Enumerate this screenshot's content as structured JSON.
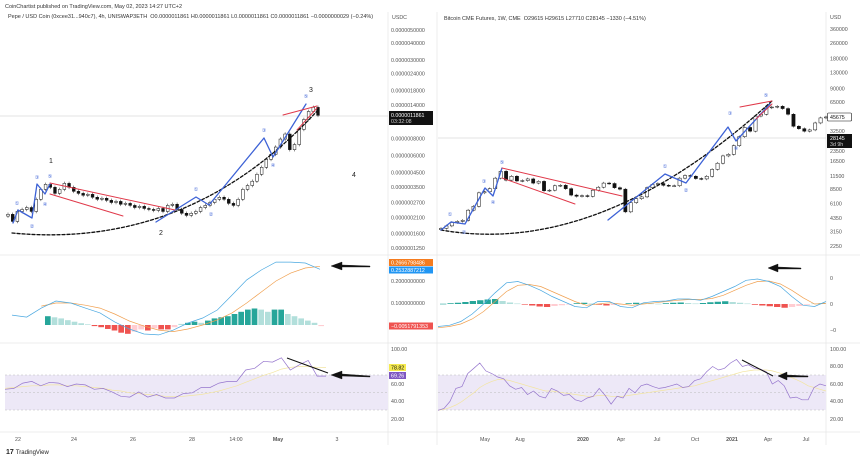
{
  "header": {
    "published": "CoinChartist published on TradingView.com, May 02, 2023 14:27 UTC+2"
  },
  "footer": {
    "brand": "TradingView",
    "logo_icon": "tradingview-logo-icon"
  },
  "colors": {
    "wave": "#3d62d6",
    "channel": "#e0394a",
    "macd": "#4aa8e0",
    "signal": "#f0a050",
    "hist_up": "#26a69a",
    "hist_up_light": "#b2dfdb",
    "hist_down": "#ef5350",
    "hist_down_light": "#ffcdd2",
    "rsi": "#9575cd",
    "rsi_ma": "#f3e5a0",
    "rsi_band": "#ede8f7"
  },
  "chart_data": [
    {
      "type": "candlestick",
      "title": "Pepe / USD Coin (0xcee31...940c7), 4h, UNISWAP3ETH",
      "ohlc_text": "O0.0000011861  H0.0000011861  L0.0000011861  C0.0000011861  −0.0000000029 (−0.24%)",
      "currency": "USDC",
      "y_scale": "log",
      "ylim": [
        1.25e-07,
        5e-06
      ],
      "y_ticks": [
        "0.0000050000",
        "0.0000040000",
        "0.0000030000",
        "0.0000024000",
        "0.0000018000",
        "0.0000014000",
        "0.0000008000",
        "0.0000006000",
        "0.0000004500",
        "0.0000003500",
        "0.0000002700",
        "0.0000002100",
        "0.0000001600",
        "0.0000001250"
      ],
      "x_ticks": [
        "22",
        "24",
        "26",
        "28",
        "14:00",
        "May",
        "3"
      ],
      "last_price": {
        "value": "0.0000011861",
        "countdown": "03:32:08"
      },
      "closes": [
        2.21e-07,
        1.96e-07,
        2.32e-07,
        2.4e-07,
        2.48e-07,
        2.32e-07,
        2.85e-07,
        3.37e-07,
        3.67e-07,
        3.49e-07,
        3.15e-07,
        3.37e-07,
        3.73e-07,
        3.49e-07,
        3.26e-07,
        3.15e-07,
        3.05e-07,
        3.1e-07,
        2.95e-07,
        2.85e-07,
        2.9e-07,
        2.8e-07,
        2.7e-07,
        2.75e-07,
        2.62e-07,
        2.66e-07,
        2.57e-07,
        2.48e-07,
        2.53e-07,
        2.44e-07,
        2.4e-07,
        2.36e-07,
        2.44e-07,
        2.32e-07,
        2.57e-07,
        2.62e-07,
        2.4e-07,
        2.25e-07,
        2.17e-07,
        2.25e-07,
        2.32e-07,
        2.48e-07,
        2.57e-07,
        2.7e-07,
        2.85e-07,
        2.95e-07,
        2.85e-07,
        2.66e-07,
        2.57e-07,
        2.85e-07,
        3.37e-07,
        3.6e-07,
        3.87e-07,
        4.35e-07,
        4.9e-07,
        5.6e-07,
        6.1e-07,
        6.9e-07,
        7.9e-07,
        8.6e-07,
        6.6e-07,
        7.2e-07,
        9.3e-07,
        1.1e-06,
        1.26e-06,
        1.35e-06,
        1.18e-06
      ],
      "wave_labels": {
        "major": [
          "1",
          "2",
          "3",
          "4"
        ],
        "minor": [
          "①",
          "②",
          "③",
          "④",
          "⑤",
          "①",
          "②",
          "③",
          "④",
          "⑤"
        ]
      },
      "macd": {
        "ticks": [
          "0.2000000000",
          "0.1000000000"
        ],
        "macd_value": "0.2532887212",
        "signal_value": "0.2666798486",
        "hist_value": "−0.0051791353",
        "macd": [
          0.045,
          0.036,
          0.077,
          0.109,
          0.1,
          0.077,
          0.055,
          0.014,
          -0.018,
          -0.041,
          -0.045,
          -0.023,
          0.009,
          0.032,
          0.068,
          0.136,
          0.205,
          0.25,
          0.286,
          0.286,
          0.282,
          0.253
        ],
        "signal": [
          null,
          null,
          0.086,
          0.1,
          0.1,
          0.09,
          0.077,
          0.05,
          0.018,
          -0.005,
          -0.023,
          -0.03,
          -0.018,
          0.0,
          0.023,
          0.055,
          0.1,
          0.15,
          0.2,
          0.236,
          0.259,
          0.267
        ],
        "hist": [
          0.04,
          0.035,
          0.03,
          0.022,
          0.015,
          0.008,
          0.003,
          -0.005,
          -0.01,
          -0.018,
          -0.025,
          -0.035,
          -0.04,
          -0.03,
          -0.02,
          -0.025,
          -0.015,
          -0.02,
          -0.02,
          -0.01,
          0.005,
          0.01,
          0.015,
          0.01,
          0.02,
          0.03,
          0.035,
          0.04,
          0.05,
          0.06,
          0.07,
          0.075,
          0.07,
          0.06,
          0.07,
          0.07,
          0.05,
          0.04,
          0.03,
          0.02,
          0.01,
          -0.005
        ]
      },
      "rsi": {
        "ticks": [
          "100.00",
          "60.00",
          "40.00",
          "20.00"
        ],
        "rsi_value": "69.26",
        "ma_value": "78.82",
        "rsi": [
          54,
          55,
          61,
          63,
          58,
          62,
          61,
          57,
          60,
          59,
          54,
          55,
          51,
          46,
          45,
          51,
          45,
          48,
          44,
          44,
          49,
          50,
          56,
          56,
          61,
          63,
          63,
          76,
          78,
          86,
          85,
          90,
          76,
          82,
          87,
          69,
          69
        ],
        "ma": [
          55,
          56,
          57,
          58,
          58,
          59,
          59,
          58,
          58,
          57,
          56,
          55,
          53,
          52,
          50,
          49,
          48,
          47,
          46,
          46,
          46,
          47,
          48,
          50,
          52,
          55,
          58,
          62,
          66,
          70,
          73,
          77,
          79,
          80,
          80,
          79,
          78.82
        ]
      }
    },
    {
      "type": "candlestick",
      "title": "Bitcoin CME Futures, 1W, CME",
      "ohlc_text": "O29615  H29615  L27710  C28145  −1330 (−4.51%)",
      "currency": "USD",
      "y_scale": "log",
      "ylim": [
        2250,
        360000
      ],
      "y_ticks": [
        "360000",
        "260000",
        "180000",
        "130000",
        "90000",
        "65000",
        "32500",
        "23500",
        "16500",
        "11500",
        "8500",
        "6100",
        "4350",
        "3150",
        "2250"
      ],
      "x_ticks": [
        "May",
        "Aug",
        "2020",
        "Apr",
        "Jul",
        "Oct",
        "2021",
        "Apr",
        "Jul"
      ],
      "marker_price": "45675",
      "last_price": {
        "value": "28145",
        "countdown": "3d 9h"
      },
      "closes": [
        3400,
        3600,
        3900,
        4000,
        4100,
        5200,
        5700,
        7800,
        8000,
        8600,
        11000,
        12900,
        10500,
        11500,
        10300,
        10400,
        10800,
        9800,
        10200,
        8200,
        8300,
        9200,
        9300,
        8600,
        7400,
        7200,
        7300,
        7200,
        8300,
        8900,
        9800,
        9700,
        8800,
        8500,
        5000,
        6200,
        6800,
        7100,
        8800,
        9500,
        9700,
        9300,
        9200,
        9200,
        11000,
        11700,
        11500,
        10900,
        10800,
        11500,
        13500,
        15600,
        18500,
        19200,
        23500,
        29000,
        36000,
        33000,
        47000,
        49000,
        57000,
        58000,
        59000,
        56000,
        49000,
        37000,
        35000,
        33000,
        34000,
        40000,
        45000,
        46000
      ],
      "wave_labels": {
        "minor": [
          "①",
          "②",
          "③",
          "④",
          "⑤",
          "①",
          "②",
          "③",
          "④",
          "⑤"
        ]
      },
      "macd": {
        "ticks": [
          "0",
          "0",
          "−0"
        ],
        "macd": [
          -0.9,
          -0.85,
          -0.7,
          -0.4,
          0,
          0.45,
          0.85,
          0.9,
          0.75,
          0.55,
          0.3,
          0.1,
          -0.1,
          -0.15,
          0.1,
          0.1,
          -0.1,
          -0.15,
          0.05,
          0.1,
          0.12,
          0.2,
          0.2,
          0.15,
          0.3,
          0.5,
          0.7,
          0.95,
          1.0,
          0.9,
          0.7,
          0.3,
          -0.05,
          -0.1,
          0.1
        ],
        "signal": [
          -0.95,
          -0.9,
          -0.8,
          -0.6,
          -0.3,
          0.1,
          0.5,
          0.75,
          0.78,
          0.7,
          0.5,
          0.3,
          0.1,
          -0.05,
          0,
          0.05,
          0,
          -0.05,
          0,
          0.05,
          0.1,
          0.15,
          0.18,
          0.18,
          0.22,
          0.35,
          0.55,
          0.75,
          0.9,
          0.92,
          0.8,
          0.55,
          0.25,
          0,
          0.02
        ],
        "hist": [
          0.01,
          0.03,
          0.05,
          0.08,
          0.12,
          0.15,
          0.18,
          0.2,
          0.12,
          0.06,
          0.02,
          -0.02,
          -0.06,
          -0.1,
          -0.12,
          -0.08,
          -0.05,
          -0.02,
          0.03,
          0.05,
          0.02,
          -0.03,
          -0.06,
          -0.04,
          -0.01,
          0.03,
          0.05,
          0.04,
          0.02,
          0.01,
          0.03,
          0.05,
          0.06,
          0.04,
          0.02,
          0.04,
          0.07,
          0.09,
          0.11,
          0.08,
          0.05,
          0.02,
          -0.03,
          -0.06,
          -0.09,
          -0.12,
          -0.15,
          -0.12,
          -0.08,
          -0.03,
          0.02,
          0.03
        ]
      },
      "rsi": {
        "ticks": [
          "100.00",
          "80.00",
          "60.00",
          "40.00",
          "20.00"
        ],
        "rsi": [
          30,
          32,
          40,
          55,
          57,
          72,
          78,
          84,
          75,
          72,
          68,
          66,
          58,
          54,
          56,
          48,
          52,
          46,
          44,
          55,
          52,
          47,
          48,
          42,
          40,
          44,
          46,
          55,
          47,
          37,
          46,
          44,
          55,
          50,
          58,
          60,
          57,
          55,
          56,
          58,
          60,
          56,
          57,
          64,
          66,
          74,
          80,
          76,
          78,
          84,
          88,
          80,
          82,
          78,
          77,
          74,
          60,
          64,
          58,
          44,
          45,
          42,
          42,
          56,
          60,
          58
        ],
        "ma": [
          30,
          31,
          33,
          36,
          40,
          45,
          50,
          56,
          60,
          63,
          65,
          65,
          64,
          62,
          60,
          58,
          56,
          54,
          52,
          52,
          51,
          50,
          49,
          48,
          47,
          46,
          46,
          47,
          47,
          46,
          46,
          46,
          47,
          48,
          49,
          50,
          51,
          52,
          53,
          54,
          55,
          56,
          57,
          58,
          60,
          62,
          64,
          66,
          68,
          70,
          72,
          74,
          75,
          76,
          76,
          76,
          75,
          73,
          71,
          68,
          65,
          62,
          58,
          56,
          54,
          52
        ]
      }
    }
  ]
}
